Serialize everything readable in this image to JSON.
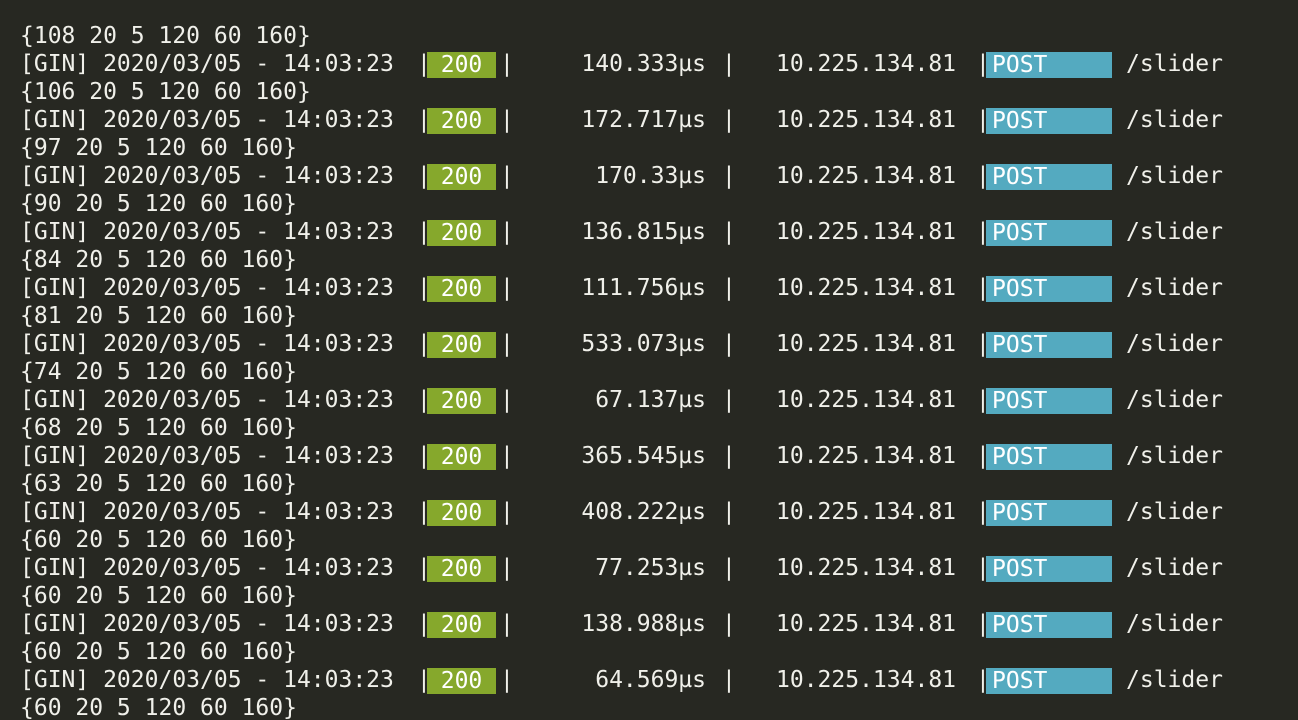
{
  "colors": {
    "background": "#272822",
    "text": "#f0f0ea",
    "status_bg": "#86a82c",
    "method_bg": "#54aac0"
  },
  "log": {
    "first_value": "{108 20 5 120 60 160}",
    "entries": [
      {
        "prefix": "[GIN] 2020/03/05 - 14:03:23",
        "status": "200",
        "latency": "140.333µs",
        "ip": "10.225.134.81",
        "method": "POST",
        "path": "/slider",
        "value": "{106 20 5 120 60 160}"
      },
      {
        "prefix": "[GIN] 2020/03/05 - 14:03:23",
        "status": "200",
        "latency": "172.717µs",
        "ip": "10.225.134.81",
        "method": "POST",
        "path": "/slider",
        "value": "{97 20 5 120 60 160}"
      },
      {
        "prefix": "[GIN] 2020/03/05 - 14:03:23",
        "status": "200",
        "latency": "170.33µs",
        "ip": "10.225.134.81",
        "method": "POST",
        "path": "/slider",
        "value": "{90 20 5 120 60 160}"
      },
      {
        "prefix": "[GIN] 2020/03/05 - 14:03:23",
        "status": "200",
        "latency": "136.815µs",
        "ip": "10.225.134.81",
        "method": "POST",
        "path": "/slider",
        "value": "{84 20 5 120 60 160}"
      },
      {
        "prefix": "[GIN] 2020/03/05 - 14:03:23",
        "status": "200",
        "latency": "111.756µs",
        "ip": "10.225.134.81",
        "method": "POST",
        "path": "/slider",
        "value": "{81 20 5 120 60 160}"
      },
      {
        "prefix": "[GIN] 2020/03/05 - 14:03:23",
        "status": "200",
        "latency": "533.073µs",
        "ip": "10.225.134.81",
        "method": "POST",
        "path": "/slider",
        "value": "{74 20 5 120 60 160}"
      },
      {
        "prefix": "[GIN] 2020/03/05 - 14:03:23",
        "status": "200",
        "latency": "67.137µs",
        "ip": "10.225.134.81",
        "method": "POST",
        "path": "/slider",
        "value": "{68 20 5 120 60 160}"
      },
      {
        "prefix": "[GIN] 2020/03/05 - 14:03:23",
        "status": "200",
        "latency": "365.545µs",
        "ip": "10.225.134.81",
        "method": "POST",
        "path": "/slider",
        "value": "{63 20 5 120 60 160}"
      },
      {
        "prefix": "[GIN] 2020/03/05 - 14:03:23",
        "status": "200",
        "latency": "408.222µs",
        "ip": "10.225.134.81",
        "method": "POST",
        "path": "/slider",
        "value": "{60 20 5 120 60 160}"
      },
      {
        "prefix": "[GIN] 2020/03/05 - 14:03:23",
        "status": "200",
        "latency": "77.253µs",
        "ip": "10.225.134.81",
        "method": "POST",
        "path": "/slider",
        "value": "{60 20 5 120 60 160}"
      },
      {
        "prefix": "[GIN] 2020/03/05 - 14:03:23",
        "status": "200",
        "latency": "138.988µs",
        "ip": "10.225.134.81",
        "method": "POST",
        "path": "/slider",
        "value": "{60 20 5 120 60 160}"
      },
      {
        "prefix": "[GIN] 2020/03/05 - 14:03:23",
        "status": "200",
        "latency": "64.569µs",
        "ip": "10.225.134.81",
        "method": "POST",
        "path": "/slider",
        "value": "{60 20 5 120 60 160}"
      }
    ]
  }
}
